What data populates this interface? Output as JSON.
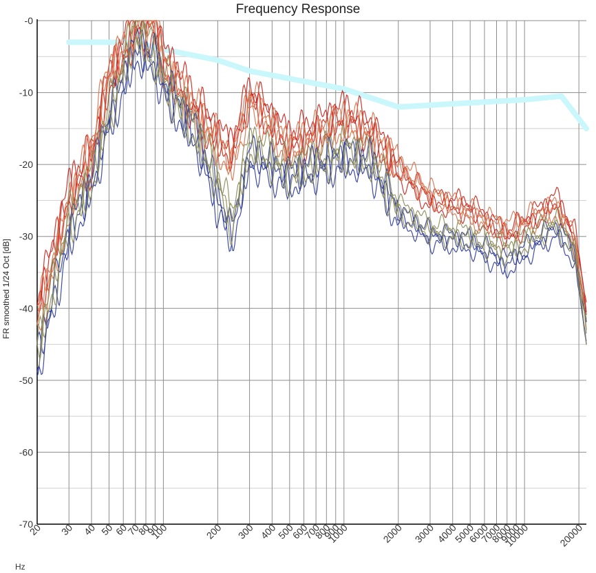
{
  "chart_data": {
    "type": "line",
    "title": "Frequency Response",
    "xlabel": "Hz",
    "ylabel": "FR smoothed 1/24 Oct [dB]",
    "xscale": "log",
    "xlim": [
      20,
      22000
    ],
    "ylim": [
      -70,
      0
    ],
    "grid": true,
    "x_ticks": [
      20,
      30,
      40,
      50,
      60,
      70,
      80,
      90,
      100,
      200,
      300,
      400,
      500,
      600,
      700,
      800,
      900,
      1000,
      2000,
      3000,
      4000,
      5000,
      6000,
      7000,
      8000,
      9000,
      10000,
      20000
    ],
    "y_ticks": [
      -70,
      -60,
      -50,
      -40,
      -30,
      -20,
      -10,
      0
    ],
    "y_tick_labels": [
      "-70",
      "-60",
      "-50",
      "-40",
      "-30",
      "-20",
      "-10",
      "-0"
    ],
    "colors": {
      "grid_major": "#8c8c8c",
      "grid_minor": "#cfcfcf",
      "target": "#c9f7fb",
      "red": "#c8241a",
      "orange": "#d9714a",
      "blue": "#2a3a9a",
      "olive": "#8a8a55"
    },
    "target_curve": {
      "x": [
        30,
        70,
        100,
        200,
        300,
        1000,
        2000,
        10000,
        16000,
        22000
      ],
      "y": [
        -3,
        -3,
        -4,
        -5.5,
        -7,
        -9.5,
        -12,
        -11,
        -10.5,
        -15
      ]
    },
    "series": [
      {
        "color": "#c8241a",
        "x": [
          20,
          30,
          40,
          50,
          70,
          90,
          100,
          150,
          200,
          240,
          300,
          500,
          1000,
          1400,
          2000,
          3000,
          5000,
          8000,
          15000,
          19000,
          22000
        ],
        "y": [
          -40,
          -24,
          -19,
          -8,
          -1,
          -1,
          -5,
          -12,
          -16,
          -18,
          -10,
          -17,
          -13,
          -15,
          -21,
          -25,
          -26,
          -30,
          -25,
          -30,
          -40
        ]
      },
      {
        "color": "#d9714a",
        "x": [
          20,
          30,
          40,
          50,
          70,
          90,
          100,
          150,
          200,
          240,
          300,
          500,
          1000,
          1400,
          2000,
          3000,
          5000,
          8000,
          15000,
          19000,
          22000
        ],
        "y": [
          -42,
          -26,
          -18,
          -7,
          -2,
          0,
          -6,
          -13,
          -17,
          -20,
          -11,
          -18,
          -14,
          -16,
          -20,
          -24,
          -27,
          -29,
          -26,
          -31,
          -42
        ]
      },
      {
        "color": "#2a3a9a",
        "x": [
          20,
          30,
          40,
          50,
          70,
          90,
          100,
          150,
          200,
          240,
          300,
          500,
          1000,
          1400,
          2000,
          3000,
          5000,
          8000,
          15000,
          19000,
          22000
        ],
        "y": [
          -48,
          -30,
          -23,
          -14,
          -4,
          -6,
          -9,
          -16,
          -25,
          -30,
          -19,
          -22,
          -19,
          -20,
          -27,
          -30,
          -31,
          -34,
          -29,
          -33,
          -44
        ]
      },
      {
        "color": "#8a8a55",
        "x": [
          20,
          30,
          40,
          50,
          70,
          90,
          100,
          150,
          200,
          240,
          300,
          500,
          1000,
          1400,
          2000,
          3000,
          5000,
          8000,
          15000,
          19000,
          22000
        ],
        "y": [
          -46,
          -28,
          -22,
          -13,
          -1,
          -5,
          -8,
          -15,
          -22,
          -28,
          -17,
          -21,
          -18,
          -19,
          -26,
          -29,
          -30,
          -32,
          -28,
          -32,
          -43
        ]
      }
    ]
  }
}
